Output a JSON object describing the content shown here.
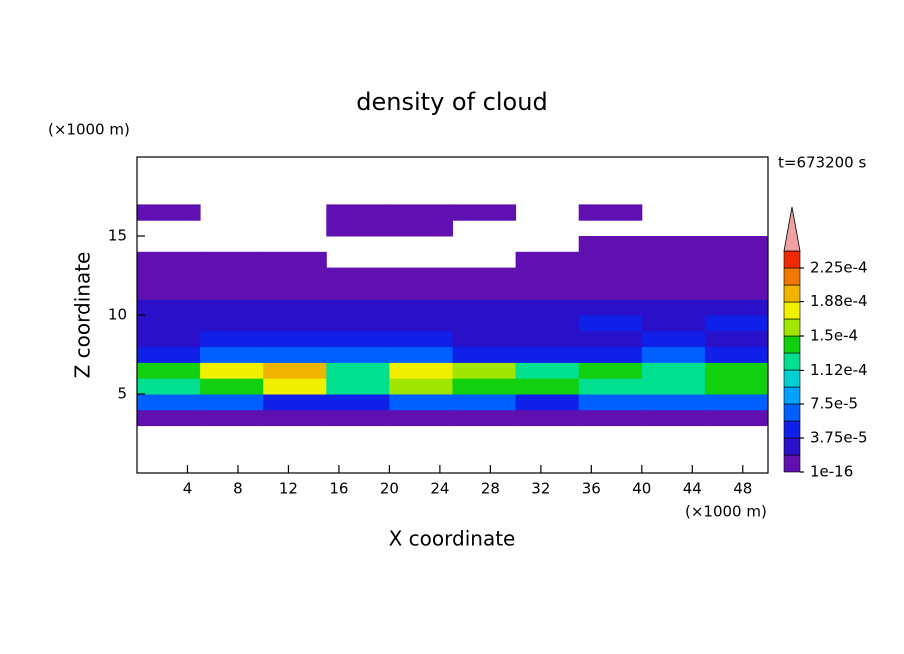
{
  "chart_data": {
    "type": "contour",
    "title": "density of cloud",
    "xlabel": "X coordinate",
    "ylabel": "Z coordinate",
    "xunit": "(×1000 m)",
    "yunit": "(×1000 m)",
    "annotation": "t=673200 s",
    "xlim": [
      0,
      50
    ],
    "ylim": [
      0,
      20
    ],
    "xticks": [
      4,
      8,
      12,
      16,
      20,
      24,
      28,
      32,
      36,
      40,
      44,
      48
    ],
    "yticks": [
      5,
      10,
      15
    ],
    "x": [
      2.5,
      7.5,
      12.5,
      17.5,
      22.5,
      27.5,
      32.5,
      37.5,
      42.5,
      47.5
    ],
    "y": [
      3.5,
      4.5,
      5.5,
      6.5,
      7.5,
      8.5,
      9.5,
      10.5,
      11.5,
      12.5,
      13.5,
      14.5,
      15.5,
      16.5
    ],
    "z": [
      [
        1.5e-05,
        1.5e-05,
        1.5e-05,
        1.5e-05,
        1.5e-05,
        1.5e-05,
        1.5e-05,
        1.5e-05,
        1.5e-05,
        1.5e-05
      ],
      [
        6e-05,
        6e-05,
        5e-05,
        5e-05,
        6e-05,
        6e-05,
        5e-05,
        6e-05,
        6e-05,
        6e-05
      ],
      [
        0.00013,
        0.00015,
        0.00017,
        0.00013,
        0.00016,
        0.00014,
        0.00015,
        0.00013,
        0.00012,
        0.00014
      ],
      [
        0.00014,
        0.00017,
        0.0002,
        0.00012,
        0.00017,
        0.00016,
        0.00013,
        0.00015,
        0.00012,
        0.00015
      ],
      [
        5e-05,
        6e-05,
        7e-05,
        6e-05,
        7e-05,
        5e-05,
        4e-05,
        5e-05,
        6e-05,
        5e-05
      ],
      [
        3e-05,
        4e-05,
        4e-05,
        5e-05,
        4e-05,
        3e-05,
        3e-05,
        3e-05,
        4e-05,
        3e-05
      ],
      [
        3e-05,
        3e-05,
        3e-05,
        2.5e-05,
        3e-05,
        3e-05,
        3e-05,
        4e-05,
        3e-05,
        4e-05
      ],
      [
        2.5e-05,
        2e-05,
        3e-05,
        2e-05,
        2e-05,
        2e-05,
        3e-05,
        3e-05,
        2e-05,
        3e-05
      ],
      [
        1.5e-05,
        1.5e-05,
        1e-05,
        1e-05,
        1e-05,
        1.5e-05,
        1e-05,
        1e-05,
        1e-05,
        1e-05
      ],
      [
        5e-06,
        5e-06,
        5e-06,
        5e-06,
        5e-06,
        5e-06,
        5e-06,
        5e-06,
        5e-06,
        5e-06
      ],
      [
        5e-06,
        5e-06,
        5e-06,
        null,
        null,
        null,
        5e-06,
        5e-06,
        5e-06,
        5e-06
      ],
      [
        null,
        null,
        null,
        null,
        null,
        null,
        null,
        5e-06,
        5e-06,
        5e-06
      ],
      [
        null,
        null,
        null,
        5e-06,
        5e-06,
        null,
        null,
        null,
        null,
        null
      ],
      [
        5e-06,
        null,
        null,
        5e-06,
        5e-06,
        5e-06,
        null,
        5e-06,
        null,
        null
      ]
    ],
    "clim": [
      1e-16,
      0.00024375
    ],
    "colors": [
      "#6010b0",
      "#2a10c8",
      "#1020e8",
      "#0060ff",
      "#00a0ff",
      "#00d0d0",
      "#00e090",
      "#10d010",
      "#a0e600",
      "#f0f000",
      "#f0b400",
      "#f07800",
      "#f02800"
    ],
    "extend_color": "#f0a0a0",
    "cticks": [
      {
        "value": 1e-16,
        "label": "1e-16"
      },
      {
        "value": 3.75e-05,
        "label": "3.75e-5"
      },
      {
        "value": 7.5e-05,
        "label": "7.5e-5"
      },
      {
        "value": 0.000112,
        "label": "1.12e-4"
      },
      {
        "value": 0.00015,
        "label": "1.5e-4"
      },
      {
        "value": 0.000188,
        "label": "1.88e-4"
      },
      {
        "value": 0.000225,
        "label": "2.25e-4"
      }
    ]
  }
}
